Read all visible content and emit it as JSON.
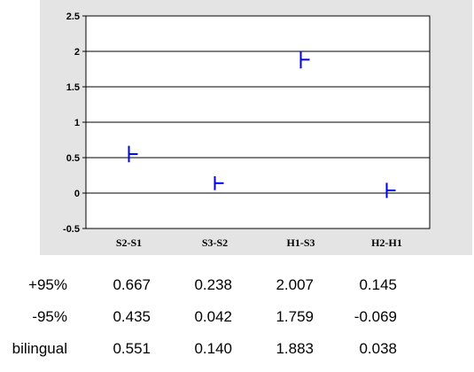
{
  "chart_data": {
    "type": "errorbar",
    "categories": [
      "S2-S1",
      "S3-S2",
      "H1-S3",
      "H2-H1"
    ],
    "series": [
      {
        "name": "bilingual",
        "values": [
          0.551,
          0.14,
          1.883,
          0.038
        ],
        "upper": [
          0.667,
          0.238,
          2.007,
          0.145
        ],
        "lower": [
          0.435,
          0.042,
          1.759,
          -0.069
        ]
      }
    ],
    "yticks": [
      "2.5",
      "2",
      "1.5",
      "1",
      "0.5",
      "0",
      "-0.5"
    ],
    "ylim": [
      -0.5,
      2.5
    ],
    "grid": true,
    "mark_color": "#0000ee",
    "plot_background": "#e4e4e4"
  },
  "table": {
    "rows": [
      {
        "label": "+95%",
        "values": [
          "0.667",
          "0.238",
          "2.007",
          "0.145"
        ]
      },
      {
        "label": "-95%",
        "values": [
          "0.435",
          "0.042",
          "1.759",
          "-0.069"
        ]
      },
      {
        "label": "bilingual",
        "values": [
          "0.551",
          "0.140",
          "1.883",
          "0.038"
        ]
      }
    ]
  }
}
